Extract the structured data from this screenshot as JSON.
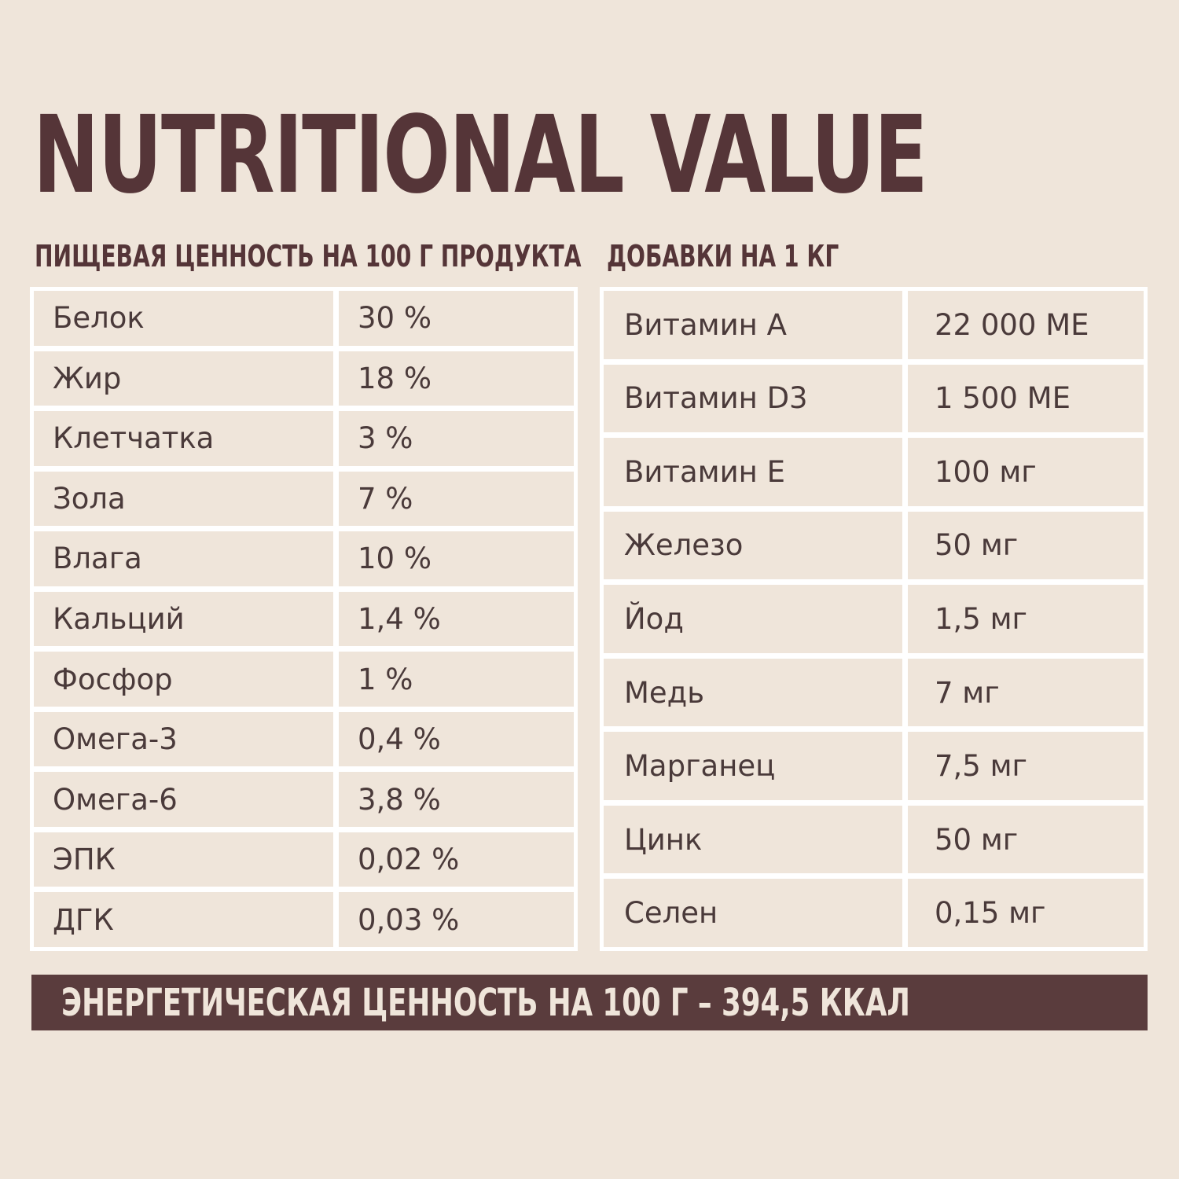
{
  "title": "NUTRITIONAL VALUE",
  "nutrition": {
    "heading": "ПИЩЕВАЯ ЦЕННОСТЬ НА 100 Г ПРОДУКТА",
    "rows": [
      {
        "name": "Белок",
        "value": "30 %"
      },
      {
        "name": "Жир",
        "value": "18 %"
      },
      {
        "name": "Клетчатка",
        "value": "3 %"
      },
      {
        "name": "Зола",
        "value": "7 %"
      },
      {
        "name": "Влага",
        "value": "10 %"
      },
      {
        "name": "Кальций",
        "value": "1,4 %"
      },
      {
        "name": "Фосфор",
        "value": "1 %"
      },
      {
        "name": "Омега-3",
        "value": "0,4 %"
      },
      {
        "name": "Омега-6",
        "value": "3,8 %"
      },
      {
        "name": "ЭПК",
        "value": "0,02 %"
      },
      {
        "name": "ДГК",
        "value": "0,03 %"
      }
    ]
  },
  "additives": {
    "heading": "ДОБАВКИ НА 1 КГ",
    "rows": [
      {
        "name": "Витамин А",
        "value": "22 000 МЕ"
      },
      {
        "name": "Витамин D3",
        "value": "1 500 МЕ"
      },
      {
        "name": "Витамин Е",
        "value": "100 мг"
      },
      {
        "name": "Железо",
        "value": "50 мг"
      },
      {
        "name": "Йод",
        "value": "1,5 мг"
      },
      {
        "name": "Медь",
        "value": "7 мг"
      },
      {
        "name": "Марганец",
        "value": "7,5 мг"
      },
      {
        "name": "Цинк",
        "value": "50 мг"
      },
      {
        "name": "Селен",
        "value": "0,15 мг"
      }
    ]
  },
  "energy": "ЭНЕРГЕТИЧЕСКАЯ ЦЕННОСТЬ НА 100 Г – 394,5 ККАЛ",
  "colors": {
    "background": "#efe5da",
    "accent": "#5a3c3d",
    "text": "#4a3a3a",
    "grid": "#ffffff"
  }
}
